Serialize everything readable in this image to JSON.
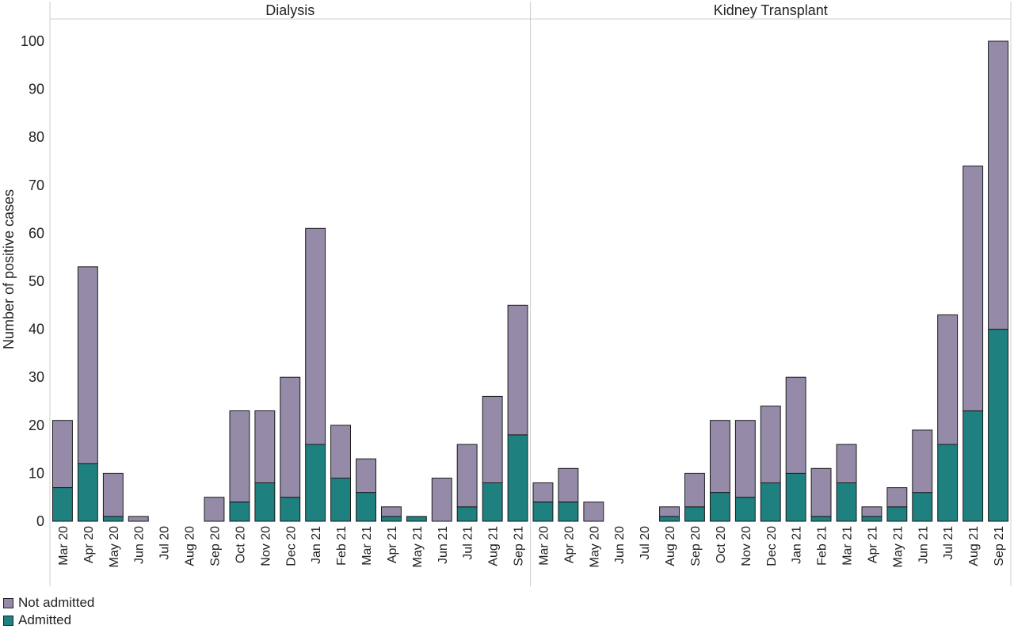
{
  "chart_data": {
    "type": "bar",
    "stacked": true,
    "ylabel": "Number of positive cases",
    "ylim": [
      0,
      100
    ],
    "yticks": [
      0,
      10,
      20,
      30,
      40,
      50,
      60,
      70,
      80,
      90,
      100
    ],
    "grid": false,
    "legend_position": "bottom-left",
    "categories": [
      "Mar 20",
      "Apr 20",
      "May 20",
      "Jun 20",
      "Jul 20",
      "Aug 20",
      "Sep 20",
      "Oct 20",
      "Nov 20",
      "Dec 20",
      "Jan 21",
      "Feb 21",
      "Mar 21",
      "Apr 21",
      "May 21",
      "Jun 21",
      "Jul 21",
      "Aug 21",
      "Sep 21"
    ],
    "legend": [
      {
        "name": "Not admitted",
        "color": "#958ba8"
      },
      {
        "name": "Admitted",
        "color": "#1f8080"
      }
    ],
    "panels": [
      {
        "title": "Dialysis",
        "series": [
          {
            "name": "Admitted",
            "values": [
              7,
              12,
              1,
              0,
              0,
              0,
              0,
              4,
              8,
              5,
              16,
              9,
              6,
              1,
              1,
              0,
              3,
              8,
              18
            ]
          },
          {
            "name": "Not admitted",
            "values": [
              14,
              41,
              9,
              1,
              0,
              0,
              5,
              19,
              15,
              25,
              45,
              11,
              7,
              2,
              0,
              9,
              13,
              18,
              27
            ]
          }
        ]
      },
      {
        "title": "Kidney Transplant",
        "series": [
          {
            "name": "Admitted",
            "values": [
              4,
              4,
              0,
              0,
              0,
              1,
              3,
              6,
              5,
              8,
              10,
              1,
              8,
              1,
              3,
              6,
              16,
              23,
              40
            ]
          },
          {
            "name": "Not admitted",
            "values": [
              4,
              7,
              4,
              0,
              0,
              2,
              7,
              15,
              16,
              16,
              20,
              10,
              8,
              2,
              4,
              13,
              27,
              51,
              60
            ]
          }
        ]
      }
    ]
  }
}
